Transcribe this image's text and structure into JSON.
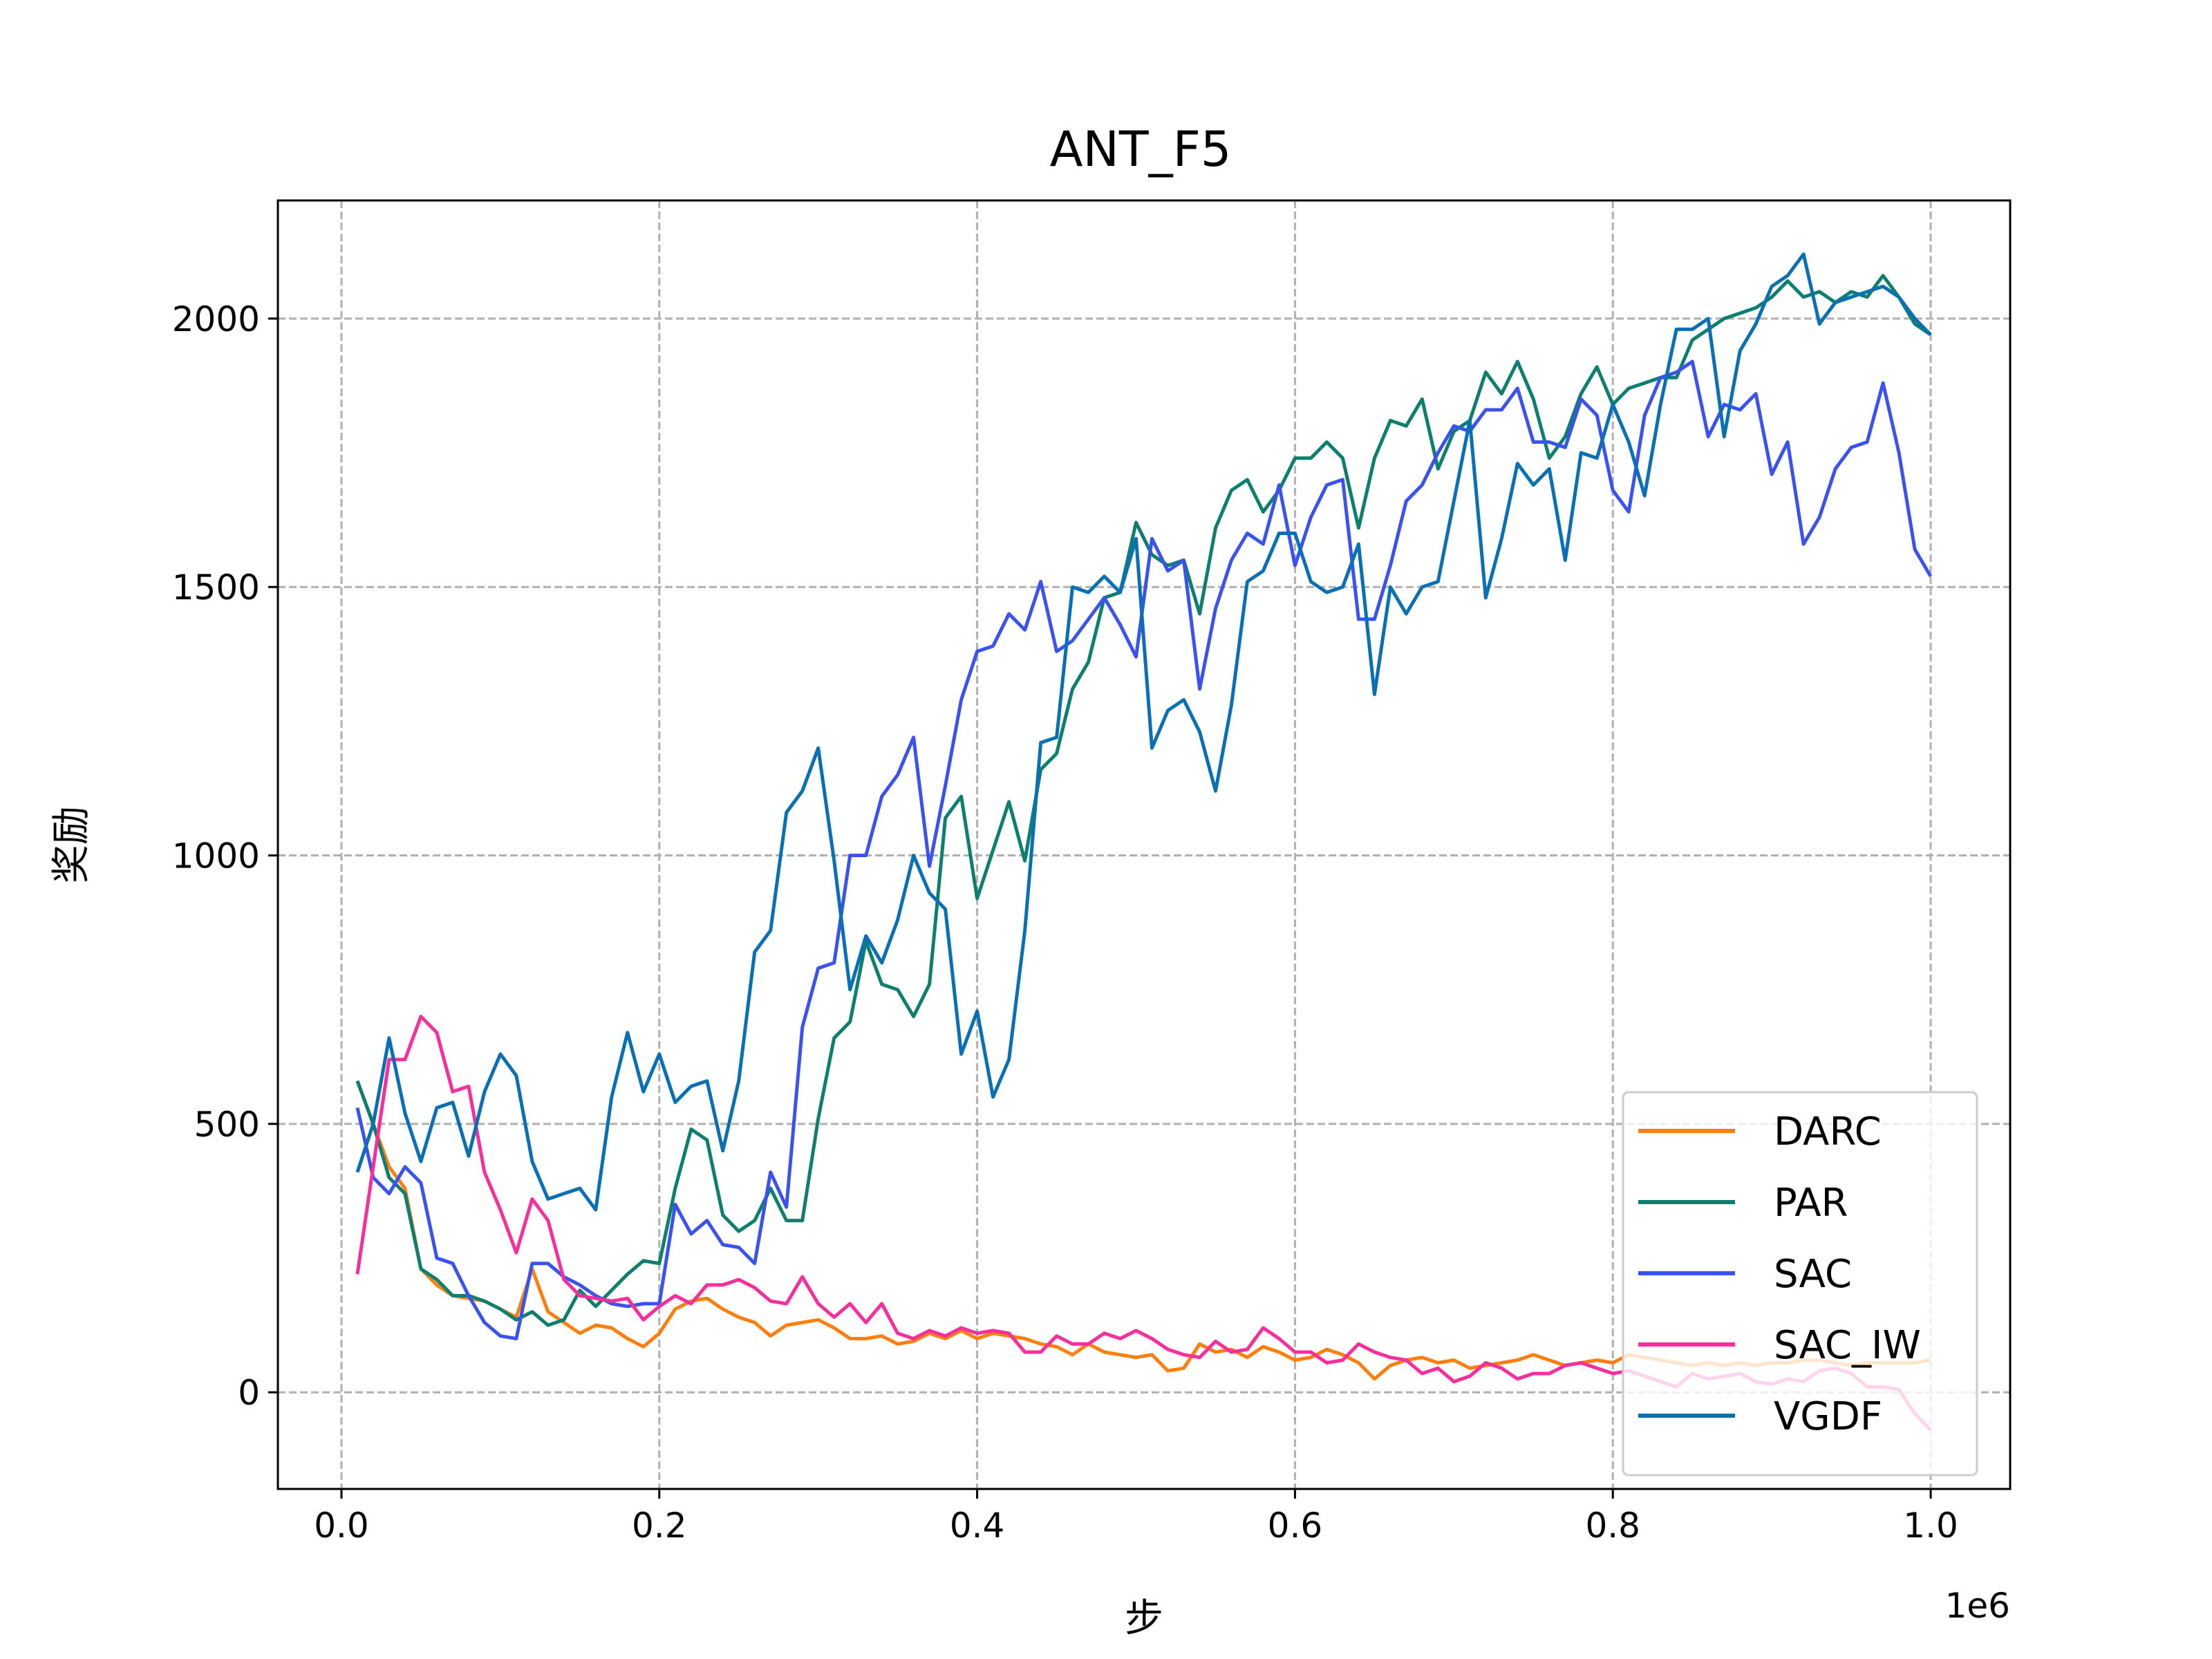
{
  "chart_data": {
    "type": "line",
    "title": "ANT_F5",
    "xlabel": "步",
    "ylabel": "奖励",
    "x_offset_label": "1e6",
    "xlim": [
      -0.04,
      1.05
    ],
    "ylim": [
      -180,
      2220
    ],
    "xticks": [
      0.0,
      0.2,
      0.4,
      0.6,
      0.8,
      1.0
    ],
    "xtick_labels": [
      "0.0",
      "0.2",
      "0.4",
      "0.6",
      "0.8",
      "1.0"
    ],
    "yticks": [
      0,
      500,
      1000,
      1500,
      2000
    ],
    "ytick_labels": [
      "0",
      "500",
      "1000",
      "1500",
      "2000"
    ],
    "grid": true,
    "legend_position": "lower-right",
    "x": [
      0.01,
      0.02,
      0.03,
      0.04,
      0.05,
      0.06,
      0.07,
      0.08,
      0.09,
      0.1,
      0.11,
      0.12,
      0.13,
      0.14,
      0.15,
      0.16,
      0.17,
      0.18,
      0.19,
      0.2,
      0.21,
      0.22,
      0.23,
      0.24,
      0.25,
      0.26,
      0.27,
      0.28,
      0.29,
      0.3,
      0.31,
      0.32,
      0.33,
      0.34,
      0.35,
      0.36,
      0.37,
      0.38,
      0.39,
      0.4,
      0.41,
      0.42,
      0.43,
      0.44,
      0.45,
      0.46,
      0.47,
      0.48,
      0.49,
      0.5,
      0.51,
      0.52,
      0.53,
      0.54,
      0.55,
      0.56,
      0.57,
      0.58,
      0.59,
      0.6,
      0.61,
      0.62,
      0.63,
      0.64,
      0.65,
      0.66,
      0.67,
      0.68,
      0.69,
      0.7,
      0.71,
      0.72,
      0.73,
      0.74,
      0.75,
      0.76,
      0.77,
      0.78,
      0.79,
      0.8,
      0.81,
      0.82,
      0.83,
      0.84,
      0.85,
      0.86,
      0.87,
      0.88,
      0.89,
      0.9,
      0.91,
      0.92,
      0.93,
      0.94,
      0.95,
      0.96,
      0.97,
      0.98,
      0.99,
      1.0
    ],
    "series": [
      {
        "name": "DARC",
        "color": "#ff7f0e",
        "values": [
          580,
          500,
          420,
          380,
          230,
          200,
          180,
          175,
          170,
          155,
          140,
          230,
          150,
          130,
          110,
          125,
          120,
          100,
          85,
          110,
          155,
          170,
          175,
          155,
          140,
          130,
          105,
          125,
          130,
          135,
          120,
          100,
          100,
          105,
          90,
          95,
          110,
          100,
          115,
          100,
          110,
          105,
          100,
          90,
          85,
          70,
          90,
          75,
          70,
          65,
          70,
          40,
          45,
          90,
          75,
          80,
          65,
          85,
          75,
          60,
          65,
          80,
          70,
          55,
          25,
          50,
          60,
          65,
          55,
          60,
          45,
          50,
          55,
          60,
          70,
          60,
          50,
          55,
          60,
          55,
          70,
          65,
          60,
          55,
          50,
          55,
          50,
          55,
          50,
          55,
          55,
          60,
          60,
          55,
          50,
          55,
          55,
          55,
          55,
          60
        ]
      },
      {
        "name": "PAR",
        "color": "#0d7f6f",
        "values": [
          580,
          500,
          400,
          370,
          230,
          210,
          180,
          180,
          170,
          155,
          135,
          150,
          125,
          135,
          190,
          160,
          190,
          220,
          245,
          240,
          380,
          490,
          470,
          330,
          300,
          320,
          380,
          320,
          320,
          510,
          660,
          690,
          840,
          760,
          750,
          700,
          760,
          1070,
          1110,
          920,
          1010,
          1100,
          990,
          1160,
          1190,
          1310,
          1360,
          1480,
          1490,
          1620,
          1560,
          1540,
          1550,
          1450,
          1610,
          1680,
          1700,
          1640,
          1680,
          1740,
          1740,
          1770,
          1740,
          1610,
          1740,
          1810,
          1800,
          1850,
          1720,
          1790,
          1810,
          1900,
          1860,
          1920,
          1850,
          1740,
          1780,
          1860,
          1910,
          1840,
          1870,
          1880,
          1890,
          1890,
          1960,
          1980,
          2000,
          2010,
          2020,
          2040,
          2070,
          2040,
          2050,
          2030,
          2050,
          2040,
          2080,
          2040,
          1990,
          1970
        ]
      },
      {
        "name": "SAC",
        "color": "#3a53f0",
        "values": [
          530,
          400,
          370,
          420,
          390,
          250,
          240,
          180,
          130,
          105,
          100,
          240,
          240,
          215,
          200,
          180,
          165,
          160,
          165,
          165,
          350,
          295,
          320,
          275,
          270,
          240,
          410,
          345,
          680,
          790,
          800,
          1000,
          1000,
          1110,
          1150,
          1220,
          980,
          1130,
          1290,
          1380,
          1390,
          1450,
          1420,
          1510,
          1380,
          1400,
          1440,
          1480,
          1430,
          1370,
          1590,
          1530,
          1550,
          1310,
          1460,
          1550,
          1600,
          1580,
          1690,
          1540,
          1630,
          1690,
          1700,
          1440,
          1440,
          1540,
          1660,
          1690,
          1750,
          1800,
          1790,
          1830,
          1830,
          1870,
          1770,
          1770,
          1760,
          1850,
          1820,
          1680,
          1640,
          1820,
          1890,
          1900,
          1920,
          1780,
          1840,
          1830,
          1860,
          1710,
          1770,
          1580,
          1630,
          1720,
          1760,
          1770,
          1880,
          1750,
          1570,
          1520
        ]
      },
      {
        "name": "SAC_IW",
        "color": "#f72f9c",
        "values": [
          220,
          420,
          620,
          620,
          700,
          670,
          560,
          570,
          410,
          340,
          260,
          360,
          320,
          210,
          180,
          175,
          170,
          175,
          135,
          160,
          180,
          165,
          200,
          200,
          210,
          195,
          170,
          165,
          215,
          165,
          140,
          165,
          130,
          165,
          110,
          100,
          115,
          105,
          120,
          110,
          115,
          110,
          75,
          75,
          105,
          90,
          90,
          110,
          100,
          115,
          100,
          80,
          70,
          65,
          95,
          75,
          80,
          120,
          100,
          75,
          75,
          55,
          60,
          90,
          75,
          65,
          60,
          35,
          45,
          20,
          30,
          55,
          45,
          25,
          35,
          35,
          50,
          55,
          45,
          35,
          40,
          30,
          20,
          10,
          35,
          25,
          30,
          35,
          20,
          15,
          25,
          20,
          40,
          45,
          35,
          10,
          10,
          5,
          -40,
          -70
        ]
      },
      {
        "name": "VGDF",
        "color": "#0a70b5",
        "values": [
          410,
          500,
          660,
          520,
          430,
          530,
          540,
          440,
          560,
          630,
          590,
          430,
          360,
          370,
          380,
          340,
          550,
          670,
          560,
          630,
          540,
          570,
          580,
          450,
          580,
          820,
          860,
          1080,
          1120,
          1200,
          990,
          750,
          850,
          800,
          880,
          1000,
          930,
          900,
          630,
          710,
          550,
          620,
          860,
          1210,
          1220,
          1500,
          1490,
          1520,
          1490,
          1590,
          1200,
          1270,
          1290,
          1230,
          1120,
          1280,
          1510,
          1530,
          1600,
          1600,
          1510,
          1490,
          1500,
          1580,
          1300,
          1500,
          1450,
          1500,
          1510,
          1660,
          1810,
          1480,
          1590,
          1730,
          1690,
          1720,
          1550,
          1750,
          1740,
          1840,
          1770,
          1670,
          1840,
          1980,
          1980,
          2000,
          1780,
          1940,
          1990,
          2060,
          2080,
          2120,
          1990,
          2030,
          2040,
          2050,
          2060,
          2040,
          2000,
          1970
        ]
      }
    ]
  }
}
